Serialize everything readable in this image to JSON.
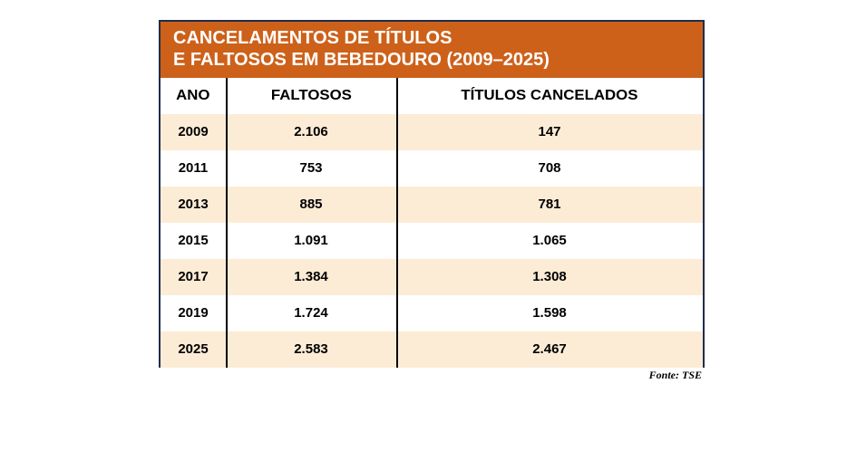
{
  "chart_data": {
    "type": "table",
    "title_lines": [
      "CANCELAMENTOS DE TÍTULOS",
      "E FALTOSOS EM BEBEDOURO (2009–2025)"
    ],
    "columns": [
      "ANO",
      "FALTOSOS",
      "TÍTULOS CANCELADOS"
    ],
    "rows": [
      [
        "2009",
        "2.106",
        "147"
      ],
      [
        "2011",
        "753",
        "708"
      ],
      [
        "2013",
        "885",
        "781"
      ],
      [
        "2015",
        "1.091",
        "1.065"
      ],
      [
        "2017",
        "1.384",
        "1.308"
      ],
      [
        "2019",
        "1.724",
        "1.598"
      ],
      [
        "2025",
        "2.583",
        "2.467"
      ]
    ],
    "source": "Fonte: TSE",
    "colors": {
      "header_bg": "#cd611a",
      "header_text": "#ffffff",
      "shaded_row": "#fcecd6",
      "border": "#1f2d4a"
    }
  }
}
